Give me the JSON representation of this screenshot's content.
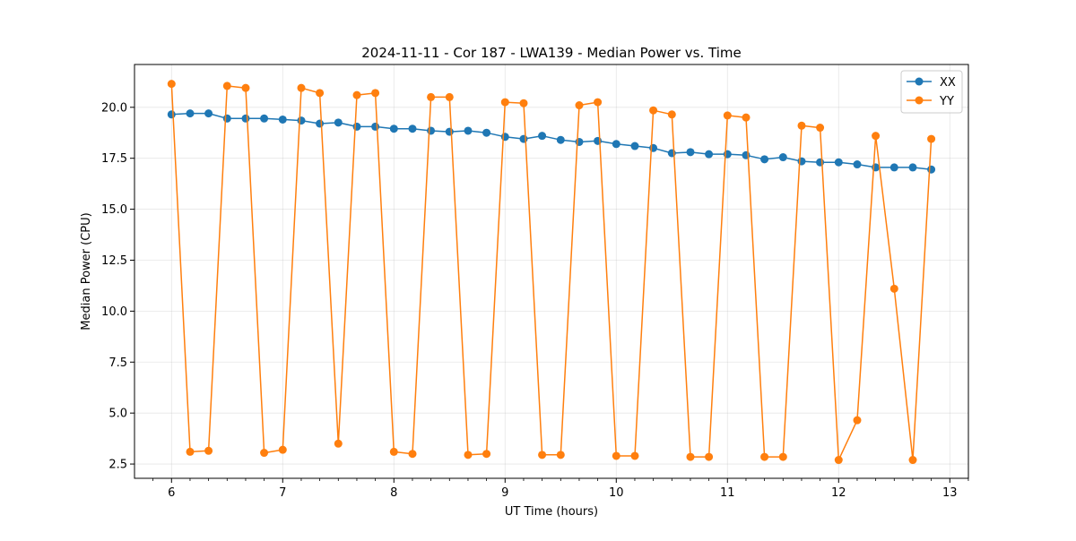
{
  "chart_data": {
    "type": "line",
    "title": "2024-11-11 - Cor 187 - LWA139 - Median Power vs. Time",
    "xlabel": "UT Time (hours)",
    "ylabel": "Median Power (CPU)",
    "xlim": [
      5.667,
      13.167
    ],
    "ylim": [
      1.8,
      22.1
    ],
    "xticks": [
      6,
      7,
      8,
      9,
      10,
      11,
      12,
      13
    ],
    "xtick_labels": [
      "6",
      "7",
      "8",
      "9",
      "10",
      "11",
      "12",
      "13"
    ],
    "yticks": [
      2.5,
      5.0,
      7.5,
      10.0,
      12.5,
      15.0,
      17.5,
      20.0
    ],
    "ytick_labels": [
      "2.5",
      "5.0",
      "7.5",
      "10.0",
      "12.5",
      "15.0",
      "17.5",
      "20.0"
    ],
    "grid": true,
    "legend_position": "top-right",
    "x": [
      6.0,
      6.167,
      6.333,
      6.5,
      6.667,
      6.833,
      7.0,
      7.167,
      7.333,
      7.5,
      7.667,
      7.833,
      8.0,
      8.167,
      8.333,
      8.5,
      8.667,
      8.833,
      9.0,
      9.167,
      9.333,
      9.5,
      9.667,
      9.833,
      10.0,
      10.167,
      10.333,
      10.5,
      10.667,
      10.833,
      11.0,
      11.167,
      11.333,
      11.5,
      11.667,
      11.833,
      12.0,
      12.167,
      12.333,
      12.5,
      12.667,
      12.833
    ],
    "series": [
      {
        "name": "XX",
        "color": "#1f77b4",
        "values": [
          19.65,
          19.7,
          19.7,
          19.45,
          19.45,
          19.45,
          19.4,
          19.35,
          19.2,
          19.25,
          19.05,
          19.05,
          18.95,
          18.95,
          18.85,
          18.8,
          18.85,
          18.75,
          18.55,
          18.45,
          18.6,
          18.4,
          18.3,
          18.35,
          18.2,
          18.1,
          18.0,
          17.75,
          17.8,
          17.7,
          17.7,
          17.65,
          17.45,
          17.55,
          17.35,
          17.3,
          17.3,
          17.2,
          17.05,
          17.05,
          17.05,
          16.95
        ]
      },
      {
        "name": "YY",
        "color": "#ff7f0e",
        "values": [
          21.15,
          3.1,
          3.15,
          21.05,
          20.95,
          3.05,
          3.2,
          20.95,
          20.7,
          3.5,
          20.6,
          20.7,
          3.1,
          3.0,
          20.5,
          20.5,
          2.95,
          3.0,
          20.25,
          20.2,
          2.95,
          2.95,
          20.1,
          20.25,
          2.9,
          2.9,
          19.85,
          19.65,
          2.85,
          2.85,
          19.6,
          19.5,
          2.85,
          2.85,
          19.1,
          19.0,
          2.7,
          4.65,
          18.6,
          11.1,
          2.7,
          18.45
        ]
      }
    ]
  }
}
